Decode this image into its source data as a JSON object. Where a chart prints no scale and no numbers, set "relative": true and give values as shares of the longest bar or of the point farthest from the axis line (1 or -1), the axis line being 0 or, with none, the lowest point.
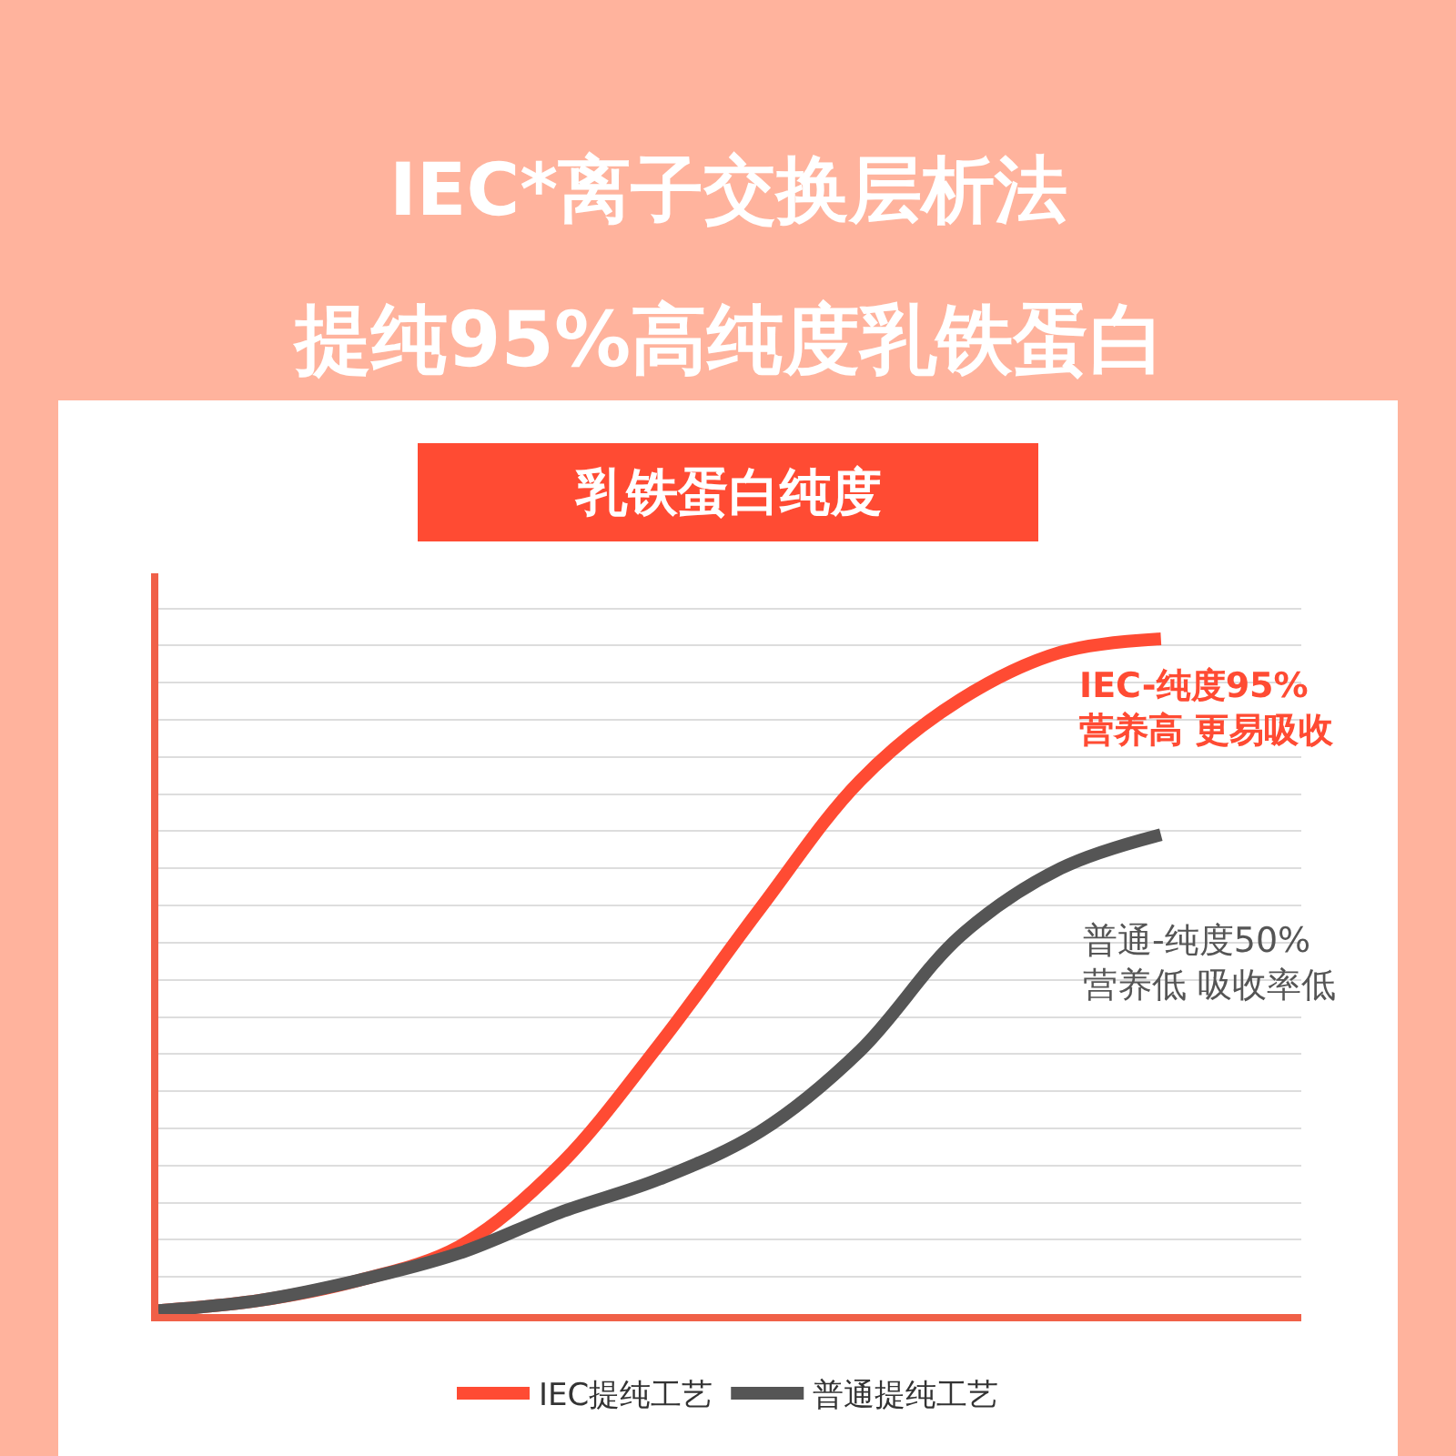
{
  "chart_data": {
    "type": "line",
    "relative": true,
    "title": "IEC*离子交换层析法",
    "subtitle": "提纯95%高纯度乳铁蛋白",
    "ylabel": "乳铁蛋白纯度",
    "categories": [
      null,
      null,
      null,
      null,
      null,
      null,
      null,
      null,
      null,
      null,
      null
    ],
    "series": [
      {
        "name": "IEC提纯工艺",
        "color": "#ff4b33",
        "values": [
          0.005,
          0.02,
          0.05,
          0.1,
          0.22,
          0.4,
          0.6,
          0.79,
          0.91,
          0.98,
          1
        ]
      },
      {
        "name": "普通提纯工艺",
        "color": "#555555",
        "values": [
          0.005,
          0.02,
          0.05,
          0.09,
          0.15,
          0.2,
          0.27,
          0.39,
          0.56,
          0.66,
          0.71
        ]
      }
    ],
    "annotations": [
      "IEC-纯度95%\n营养高 更易吸收",
      "普通-纯度50%\n营养低 吸收率低"
    ],
    "grid": true,
    "legend": "bottom",
    "marker": "none",
    "line_style": "solid"
  }
}
